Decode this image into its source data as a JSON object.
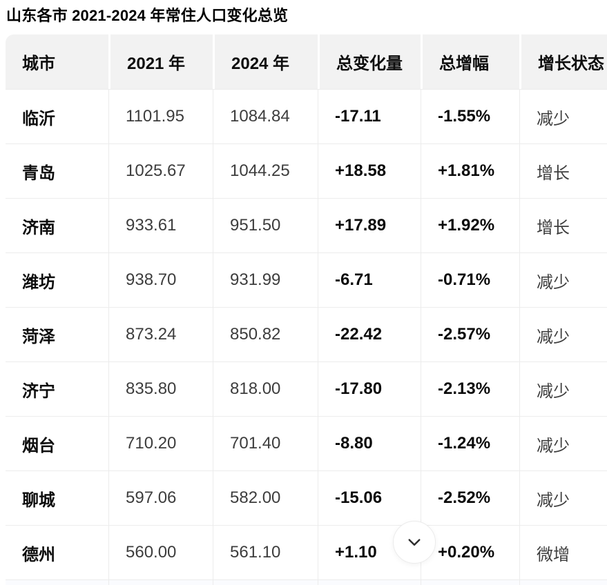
{
  "page": {
    "title": "山东各市 2021-2024 年常住人口变化总览"
  },
  "table": {
    "columns": [
      {
        "key": "city",
        "label": "城市"
      },
      {
        "key": "y2021",
        "label": "2021 年"
      },
      {
        "key": "y2024",
        "label": "2024 年"
      },
      {
        "key": "change",
        "label": "总变化量"
      },
      {
        "key": "growth",
        "label": "总增幅"
      },
      {
        "key": "status",
        "label": "增长状态"
      }
    ],
    "rows": [
      {
        "city": "临沂",
        "y2021": "1101.95",
        "y2024": "1084.84",
        "change": "-17.11",
        "growth": "-1.55%",
        "status": "减少"
      },
      {
        "city": "青岛",
        "y2021": "1025.67",
        "y2024": "1044.25",
        "change": "+18.58",
        "growth": "+1.81%",
        "status": "增长"
      },
      {
        "city": "济南",
        "y2021": "933.61",
        "y2024": "951.50",
        "change": "+17.89",
        "growth": "+1.92%",
        "status": "增长"
      },
      {
        "city": "潍坊",
        "y2021": "938.70",
        "y2024": "931.99",
        "change": "-6.71",
        "growth": "-0.71%",
        "status": "减少"
      },
      {
        "city": "菏泽",
        "y2021": "873.24",
        "y2024": "850.82",
        "change": "-22.42",
        "growth": "-2.57%",
        "status": "减少"
      },
      {
        "city": "济宁",
        "y2021": "835.80",
        "y2024": "818.00",
        "change": "-17.80",
        "growth": "-2.13%",
        "status": "减少"
      },
      {
        "city": "烟台",
        "y2021": "710.20",
        "y2024": "701.40",
        "change": "-8.80",
        "growth": "-1.24%",
        "status": "减少"
      },
      {
        "city": "聊城",
        "y2021": "597.06",
        "y2024": "582.00",
        "change": "-15.06",
        "growth": "-2.52%",
        "status": "减少"
      },
      {
        "city": "德州",
        "y2021": "560.00",
        "y2024": "561.10",
        "change": "+1.10",
        "growth": "+0.20%",
        "status": "微增"
      }
    ]
  },
  "scroll_button": {
    "icon": "chevron-down"
  },
  "colors": {
    "header_bg": "#f2f2f2",
    "grid_line": "#ececec",
    "text_bold": "#0d0d0d",
    "text_regular": "#3d3d3d",
    "partial_row_bg": "#fafbfe"
  },
  "chart_data": {
    "type": "table",
    "title": "山东各市 2021-2024 年常住人口变化总览",
    "columns": [
      "城市",
      "2021 年",
      "2024 年",
      "总变化量",
      "总增幅",
      "增长状态"
    ],
    "rows": [
      [
        "临沂",
        1101.95,
        1084.84,
        -17.11,
        "-1.55%",
        "减少"
      ],
      [
        "青岛",
        1025.67,
        1044.25,
        18.58,
        "+1.81%",
        "增长"
      ],
      [
        "济南",
        933.61,
        951.5,
        17.89,
        "+1.92%",
        "增长"
      ],
      [
        "潍坊",
        938.7,
        931.99,
        -6.71,
        "-0.71%",
        "减少"
      ],
      [
        "菏泽",
        873.24,
        850.82,
        -22.42,
        "-2.57%",
        "减少"
      ],
      [
        "济宁",
        835.8,
        818.0,
        -17.8,
        "-2.13%",
        "减少"
      ],
      [
        "烟台",
        710.2,
        701.4,
        -8.8,
        "-1.24%",
        "减少"
      ],
      [
        "聊城",
        597.06,
        582.0,
        -15.06,
        "-2.52%",
        "减少"
      ],
      [
        "德州",
        560.0,
        561.1,
        1.1,
        "+0.20%",
        "微增"
      ]
    ]
  }
}
